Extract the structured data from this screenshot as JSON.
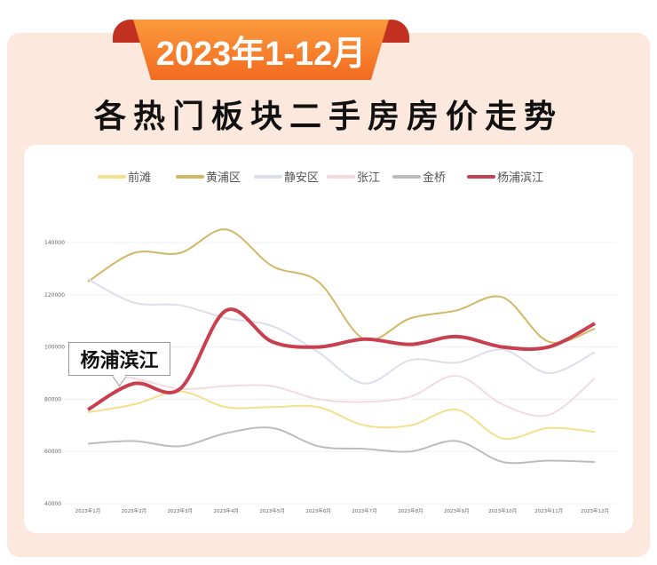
{
  "banner": "2023年1-12月",
  "title": "各热门板块二手房房价走势",
  "callout": "杨浦滨江",
  "chart_data": {
    "type": "line",
    "title": "各热门板块二手房房价走势",
    "categories": [
      "2023年1月",
      "2023年2月",
      "2023年3月",
      "2023年4月",
      "2023年5月",
      "2023年6月",
      "2023年7月",
      "2023年8月",
      "2023年9月",
      "2023年10月",
      "2023年11月",
      "2023年12月"
    ],
    "yticks": [
      "40000",
      "60000",
      "80000",
      "100000",
      "120000",
      "140000"
    ],
    "ylim": [
      40000,
      140000
    ],
    "legend_position": "top",
    "grid": true,
    "series": [
      {
        "name": "前滩",
        "color": "#f3df8c",
        "values": [
          75000,
          78000,
          83000,
          77000,
          77000,
          77000,
          70000,
          70000,
          76000,
          65000,
          69000,
          67500
        ]
      },
      {
        "name": "黄浦区",
        "color": "#d2b766",
        "values": [
          125000,
          136000,
          136000,
          145000,
          131000,
          125000,
          103000,
          111000,
          114000,
          119000,
          102000,
          107000
        ]
      },
      {
        "name": "静安区",
        "color": "#dcdfeb",
        "values": [
          126000,
          117000,
          116000,
          111000,
          108000,
          98000,
          86000,
          95000,
          94000,
          99000,
          90000,
          98000
        ]
      },
      {
        "name": "张江",
        "color": "#f3dade",
        "values": [
          90000,
          88000,
          84000,
          85000,
          85000,
          80000,
          79000,
          81000,
          89000,
          78000,
          74000,
          88000
        ]
      },
      {
        "name": "金桥",
        "color": "#bcbcbe",
        "values": [
          63000,
          64000,
          62000,
          67000,
          69000,
          62000,
          61000,
          60000,
          64000,
          56000,
          56500,
          56000
        ]
      },
      {
        "name": "杨浦滨江",
        "color": "#c8404f",
        "values": [
          76000,
          86000,
          84000,
          114000,
          102000,
          100000,
          103000,
          101000,
          104000,
          100000,
          100000,
          109000
        ]
      }
    ]
  }
}
